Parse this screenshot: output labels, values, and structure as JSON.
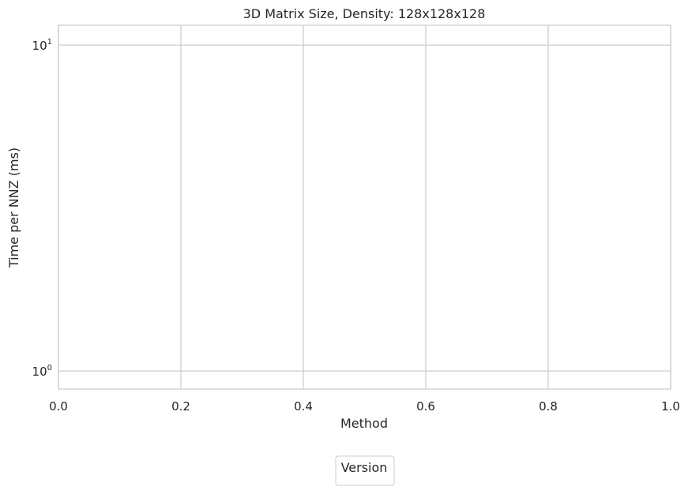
{
  "chart_data": {
    "type": "bar",
    "title": "3D Matrix Size, Density: 128x128x128",
    "xlabel": "Method",
    "ylabel": "Time per NNZ (ms)",
    "x_scale": "linear",
    "y_scale": "log",
    "xlim": [
      0.0,
      1.0
    ],
    "ylim": [
      0.88,
      11.5
    ],
    "x_ticks": [
      "0.0",
      "0.2",
      "0.4",
      "0.6",
      "0.8",
      "1.0"
    ],
    "y_ticks": [
      {
        "base": "10",
        "exp": "0",
        "value": 1
      },
      {
        "base": "10",
        "exp": "1",
        "value": 10
      }
    ],
    "grid": true,
    "legend": {
      "title": "Version",
      "entries": [],
      "placement": "bottom-center"
    },
    "series": []
  },
  "colors": {
    "grid": "#cccccc",
    "spine": "#cccccc",
    "text": "#262626",
    "background": "#ffffff"
  }
}
